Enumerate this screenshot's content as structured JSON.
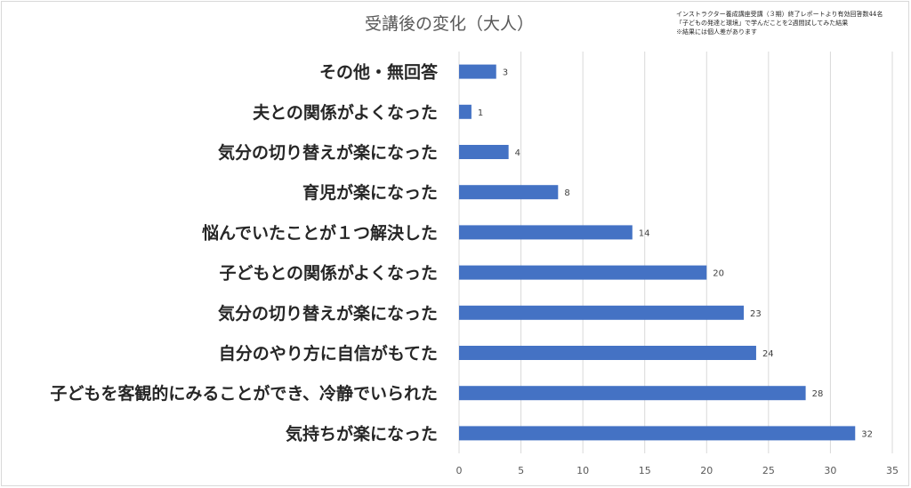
{
  "chart_data": {
    "type": "bar",
    "orientation": "horizontal",
    "title": "受講後の変化（大人）",
    "note_lines": [
      "インストラクター養成講座受講（３期）終了レポートより有効回答数44名",
      "「子どもの発達と環境」で学んだことを2週間試してみた結果",
      "※結果には個人差があります"
    ],
    "categories": [
      "その他・無回答",
      "夫との関係がよくなった",
      "気分の切り替えが楽になった",
      "育児が楽になった",
      "悩んでいたことが１つ解決した",
      "子どもとの関係がよくなった",
      "気分の切り替えが楽になった",
      "自分のやり方に自信がもてた",
      "子どもを客観的にみることができ、冷静でいられた",
      "気持ちが楽になった"
    ],
    "values": [
      3,
      1,
      4,
      8,
      14,
      20,
      23,
      24,
      28,
      32
    ],
    "xlim": [
      0,
      35
    ],
    "xticks": [
      0,
      5,
      10,
      15,
      20,
      25,
      30,
      35
    ],
    "grid": true,
    "legend": "none",
    "bar_color": "#4472c4"
  }
}
